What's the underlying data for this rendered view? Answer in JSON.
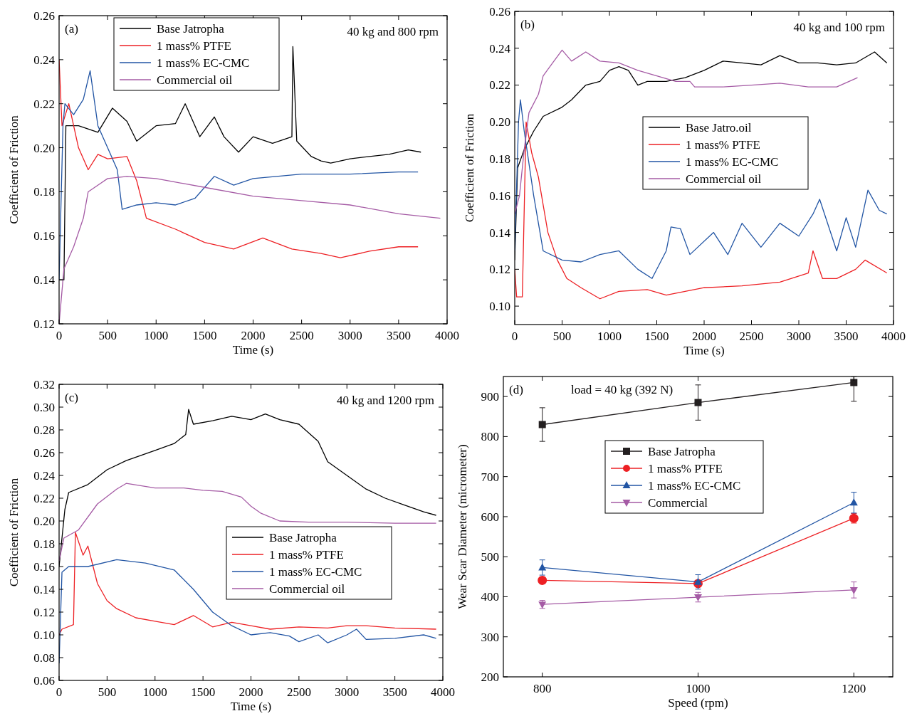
{
  "chart_data": [
    {
      "type": "line",
      "xlabel": "Time (s)",
      "ylabel": "Coefficient of Friction",
      "annotations": [
        "(a)",
        "40 kg and 800 rpm"
      ],
      "xlim": [
        0,
        4000
      ],
      "xticks": [
        0,
        500,
        1000,
        1500,
        2000,
        2500,
        3000,
        3500,
        4000
      ],
      "ylim": [
        0.12,
        0.26
      ],
      "yticks": [
        0.12,
        0.14,
        0.16,
        0.18,
        {
          "value": 0.2,
          "label": "0.20"
        },
        0.22,
        0.24,
        0.26
      ],
      "legend": "top",
      "grid": false,
      "marker": "none",
      "series": [
        {
          "name": "Base Jatropha",
          "color": "#000000",
          "x": [
            0,
            50,
            70,
            200,
            400,
            550,
            700,
            800,
            1000,
            1200,
            1300,
            1450,
            1600,
            1700,
            1850,
            2000,
            2200,
            2400,
            2410,
            2450,
            2600,
            2700,
            2800,
            3000,
            3200,
            3400,
            3600,
            3730
          ],
          "values": [
            0.14,
            0.14,
            0.21,
            0.21,
            0.207,
            0.218,
            0.212,
            0.203,
            0.21,
            0.211,
            0.22,
            0.205,
            0.214,
            0.205,
            0.198,
            0.205,
            0.202,
            0.205,
            0.246,
            0.203,
            0.196,
            0.194,
            0.193,
            0.195,
            0.196,
            0.197,
            0.199,
            0.198
          ]
        },
        {
          "name": "1 mass% PTFE",
          "color": "#ed2024",
          "x": [
            0,
            30,
            100,
            200,
            300,
            400,
            500,
            700,
            800,
            900,
            1200,
            1500,
            1800,
            2100,
            2400,
            2700,
            2900,
            3200,
            3500,
            3700
          ],
          "values": [
            0.24,
            0.21,
            0.22,
            0.2,
            0.19,
            0.197,
            0.195,
            0.196,
            0.185,
            0.168,
            0.163,
            0.157,
            0.154,
            0.159,
            0.154,
            0.152,
            0.15,
            0.153,
            0.155,
            0.155
          ]
        },
        {
          "name": "1 mass% EC-CMC",
          "color": "#2255a4",
          "x": [
            0,
            40,
            60,
            150,
            250,
            320,
            400,
            500,
            600,
            650,
            800,
            1000,
            1200,
            1400,
            1600,
            1800,
            2000,
            2500,
            3000,
            3500,
            3700
          ],
          "values": [
            0.14,
            0.21,
            0.22,
            0.215,
            0.222,
            0.235,
            0.21,
            0.2,
            0.19,
            0.172,
            0.174,
            0.175,
            0.174,
            0.177,
            0.187,
            0.183,
            0.186,
            0.188,
            0.188,
            0.189,
            0.189
          ]
        },
        {
          "name": "Commercial oil",
          "color": "#a55ba5",
          "x": [
            0,
            50,
            150,
            250,
            300,
            500,
            700,
            1000,
            1500,
            2000,
            2500,
            3000,
            3500,
            3930
          ],
          "values": [
            0.12,
            0.145,
            0.155,
            0.168,
            0.18,
            0.186,
            0.187,
            0.186,
            0.182,
            0.178,
            0.176,
            0.174,
            0.17,
            0.168
          ]
        }
      ]
    },
    {
      "type": "line",
      "xlabel": "Time (s)",
      "ylabel": "Coefficient of Friction",
      "annotations": [
        "(b)",
        "40 kg and 100 rpm"
      ],
      "xlim": [
        0,
        4000
      ],
      "xticks": [
        0,
        500,
        1000,
        1500,
        2000,
        2500,
        3000,
        3500,
        4000
      ],
      "ylim": [
        0.09,
        0.26
      ],
      "yticks": [
        {
          "value": 0.1,
          "label": "0.10"
        },
        0.12,
        0.14,
        0.16,
        0.18,
        {
          "value": 0.2,
          "label": "0.20"
        },
        0.22,
        0.24,
        0.26
      ],
      "legend": "right",
      "grid": false,
      "marker": "none",
      "series": [
        {
          "name": "Base Jatro.oil",
          "color": "#000000",
          "x": [
            0,
            30,
            100,
            200,
            300,
            500,
            600,
            750,
            900,
            1000,
            1100,
            1200,
            1300,
            1400,
            1600,
            1800,
            2000,
            2200,
            2400,
            2600,
            2800,
            3000,
            3200,
            3400,
            3600,
            3800,
            3930
          ],
          "values": [
            0.125,
            0.175,
            0.185,
            0.195,
            0.203,
            0.208,
            0.212,
            0.22,
            0.222,
            0.228,
            0.23,
            0.228,
            0.22,
            0.222,
            0.222,
            0.224,
            0.228,
            0.233,
            0.232,
            0.231,
            0.236,
            0.232,
            0.232,
            0.231,
            0.232,
            0.238,
            0.232
          ]
        },
        {
          "name": "1 mass% PTFE",
          "color": "#ed2024",
          "x": [
            0,
            20,
            80,
            120,
            180,
            250,
            350,
            450,
            550,
            700,
            900,
            1100,
            1400,
            1600,
            1800,
            2000,
            2400,
            2800,
            3100,
            3150,
            3250,
            3400,
            3600,
            3700,
            3930
          ],
          "values": [
            0.12,
            0.105,
            0.105,
            0.2,
            0.183,
            0.17,
            0.14,
            0.125,
            0.115,
            0.11,
            0.104,
            0.108,
            0.109,
            0.106,
            0.108,
            0.11,
            0.111,
            0.113,
            0.118,
            0.13,
            0.115,
            0.115,
            0.12,
            0.125,
            0.118
          ]
        },
        {
          "name": "1 mass% EC-CMC",
          "color": "#2255a4",
          "x": [
            0,
            40,
            60,
            100,
            200,
            300,
            500,
            700,
            900,
            1100,
            1300,
            1450,
            1600,
            1650,
            1750,
            1850,
            2100,
            2250,
            2400,
            2600,
            2800,
            3000,
            3150,
            3220,
            3400,
            3500,
            3600,
            3730,
            3850,
            3930
          ],
          "values": [
            0.13,
            0.2,
            0.212,
            0.195,
            0.16,
            0.13,
            0.125,
            0.124,
            0.128,
            0.13,
            0.12,
            0.115,
            0.13,
            0.143,
            0.142,
            0.128,
            0.14,
            0.128,
            0.145,
            0.132,
            0.145,
            0.138,
            0.15,
            0.158,
            0.13,
            0.148,
            0.132,
            0.163,
            0.152,
            0.15
          ]
        },
        {
          "name": "Commercial oil",
          "color": "#a55ba5",
          "x": [
            0,
            50,
            100,
            150,
            250,
            300,
            400,
            500,
            600,
            750,
            900,
            1100,
            1300,
            1500,
            1700,
            1850,
            1900,
            2200,
            2500,
            2800,
            3100,
            3400,
            3620
          ],
          "values": [
            0.15,
            0.16,
            0.185,
            0.205,
            0.215,
            0.225,
            0.232,
            0.239,
            0.233,
            0.238,
            0.233,
            0.232,
            0.228,
            0.225,
            0.222,
            0.222,
            0.219,
            0.219,
            0.22,
            0.221,
            0.219,
            0.219,
            0.224
          ]
        }
      ]
    },
    {
      "type": "line",
      "xlabel": "Time (s)",
      "ylabel": "Coefficient of Friction",
      "annotations": [
        "(c)",
        "40 kg and 1200 rpm"
      ],
      "xlim": [
        0,
        4000
      ],
      "xticks": [
        0,
        500,
        1000,
        1500,
        2000,
        2500,
        3000,
        3500,
        4000
      ],
      "ylim": [
        0.06,
        0.32
      ],
      "yticks": [
        0.06,
        0.08,
        {
          "value": 0.1,
          "label": "0.10"
        },
        0.12,
        0.14,
        0.16,
        0.18,
        {
          "value": 0.2,
          "label": "0.20"
        },
        0.22,
        0.24,
        0.26,
        0.28,
        {
          "value": 0.3,
          "label": "0.30"
        },
        0.32
      ],
      "legend": "right",
      "grid": false,
      "marker": "none",
      "series": [
        {
          "name": "Base Jatropha",
          "color": "#000000",
          "x": [
            0,
            60,
            100,
            300,
            500,
            700,
            1000,
            1200,
            1320,
            1350,
            1400,
            1600,
            1800,
            2000,
            2150,
            2300,
            2500,
            2700,
            2800,
            3000,
            3200,
            3400,
            3600,
            3800,
            3930
          ],
          "values": [
            0.16,
            0.21,
            0.225,
            0.232,
            0.245,
            0.253,
            0.262,
            0.268,
            0.276,
            0.298,
            0.285,
            0.288,
            0.292,
            0.289,
            0.294,
            0.289,
            0.285,
            0.27,
            0.252,
            0.24,
            0.228,
            0.22,
            0.214,
            0.208,
            0.205
          ]
        },
        {
          "name": "1 mass% PTFE",
          "color": "#ed2024",
          "x": [
            0,
            30,
            150,
            170,
            250,
            300,
            400,
            500,
            600,
            800,
            1000,
            1200,
            1400,
            1600,
            1800,
            2000,
            2200,
            2500,
            2800,
            3000,
            3200,
            3500,
            3930
          ],
          "values": [
            0.1,
            0.105,
            0.109,
            0.19,
            0.17,
            0.178,
            0.145,
            0.13,
            0.123,
            0.115,
            0.112,
            0.109,
            0.117,
            0.107,
            0.111,
            0.108,
            0.105,
            0.107,
            0.106,
            0.108,
            0.108,
            0.106,
            0.105
          ]
        },
        {
          "name": "1 mass% EC-CMC",
          "color": "#2255a4",
          "x": [
            0,
            30,
            100,
            300,
            600,
            900,
            1200,
            1400,
            1600,
            1800,
            2000,
            2200,
            2400,
            2500,
            2700,
            2800,
            3000,
            3100,
            3200,
            3500,
            3800,
            3930
          ],
          "values": [
            0.075,
            0.155,
            0.16,
            0.16,
            0.166,
            0.163,
            0.157,
            0.14,
            0.12,
            0.108,
            0.1,
            0.102,
            0.099,
            0.094,
            0.1,
            0.093,
            0.1,
            0.105,
            0.096,
            0.097,
            0.1,
            0.097
          ]
        },
        {
          "name": "Commercial oil",
          "color": "#a55ba5",
          "x": [
            0,
            50,
            200,
            400,
            600,
            700,
            1000,
            1300,
            1500,
            1700,
            1900,
            2000,
            2100,
            2300,
            2600,
            3000,
            3500,
            3930
          ],
          "values": [
            0.165,
            0.185,
            0.192,
            0.215,
            0.228,
            0.233,
            0.229,
            0.229,
            0.227,
            0.226,
            0.221,
            0.213,
            0.207,
            0.2,
            0.199,
            0.199,
            0.198,
            0.198
          ]
        }
      ]
    },
    {
      "type": "line",
      "xlabel": "Speed (rpm)",
      "ylabel": "Wear Scar Diameter (micrometer)",
      "annotations": [
        "(d)",
        "load = 40 kg (392 N)"
      ],
      "x": [
        800,
        1000,
        1200
      ],
      "xlim": [
        750,
        1250
      ],
      "xticks": [
        800,
        1000,
        1200
      ],
      "ylim": [
        200,
        950
      ],
      "yticks": [
        200,
        300,
        400,
        500,
        600,
        700,
        800,
        900
      ],
      "legend": "center",
      "grid": false,
      "series": [
        {
          "name": "Base Jatropha",
          "color": "#231f20",
          "marker": "square",
          "values": [
            830,
            885,
            935
          ],
          "errors": [
            42,
            44,
            [
              888,
              950
            ]
          ]
        },
        {
          "name": "1 mass% PTFE",
          "color": "#ed2024",
          "marker": "circle",
          "values": [
            441,
            433,
            596
          ],
          "errors": [
            8,
            6,
            12
          ]
        },
        {
          "name": "1 mass% EC-CMC",
          "color": "#2255a4",
          "marker": "triangle",
          "values": [
            473,
            437,
            635
          ],
          "errors": [
            19,
            18,
            26
          ]
        },
        {
          "name": "Commercial",
          "color": "#a55ba5",
          "marker": "triangle-down",
          "values": [
            381,
            399,
            417
          ],
          "errors": [
            10,
            12,
            20
          ]
        }
      ]
    }
  ]
}
